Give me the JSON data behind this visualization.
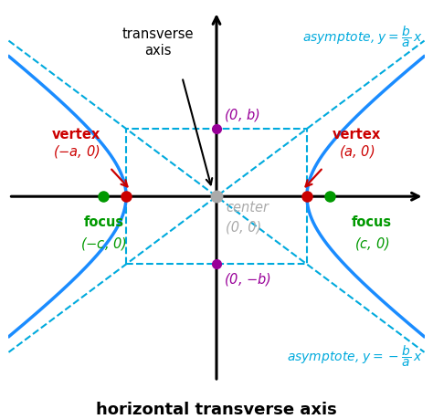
{
  "title": "horizontal transverse axis",
  "a": 1.0,
  "b": 0.75,
  "c": 1.25,
  "xlim": [
    -2.3,
    2.3
  ],
  "ylim": [
    -2.05,
    2.05
  ],
  "hyperbola_color": "#1A8CFF",
  "asymptote_color": "#00AADD",
  "box_color": "#00AADD",
  "axis_color": "black",
  "vertex_color": "#CC0000",
  "focus_color": "#009900",
  "center_color": "#AAAAAA",
  "b_point_color": "#990099",
  "vertex_label_color": "#CC0000",
  "focus_label_color": "#009900",
  "center_label_color": "#AAAAAA",
  "b_label_color": "#990099",
  "asymptote_label_color": "#00AADD",
  "transverse_label_color": "black",
  "title_color": "black",
  "background_color": "white",
  "title_fontsize": 13,
  "label_fontsize": 10.5
}
